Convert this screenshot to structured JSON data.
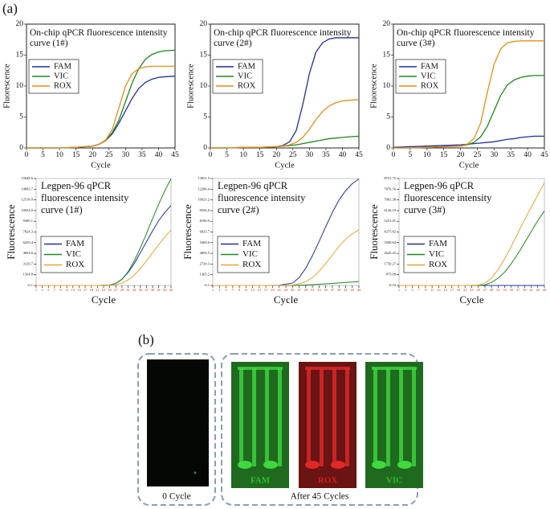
{
  "panel_labels": [
    "(a)",
    "(b)"
  ],
  "chart_data": [
    {
      "type": "line",
      "title": "On-chip qPCR fluorescence intensity curve (1#)",
      "xlabel": "Cycle",
      "ylabel": "Fluorescence",
      "x": [
        0,
        5,
        10,
        15,
        20,
        22,
        24,
        26,
        28,
        30,
        32,
        34,
        36,
        38,
        40,
        42,
        45
      ],
      "xlim": [
        0,
        45
      ],
      "xticks": [
        0,
        5,
        10,
        15,
        20,
        25,
        30,
        35,
        40,
        45
      ],
      "ylim": [
        0,
        20
      ],
      "yticks": [
        0,
        5,
        10,
        15,
        20
      ],
      "series": [
        {
          "name": "FAM",
          "color": "#1f2fa8",
          "values": [
            0,
            0,
            0,
            0.1,
            0.3,
            0.6,
            1.2,
            2.3,
            4,
            6,
            8,
            9.6,
            10.6,
            11.1,
            11.4,
            11.5,
            11.6
          ]
        },
        {
          "name": "VIC",
          "color": "#1a8a1a",
          "values": [
            0,
            0,
            0,
            0.1,
            0.3,
            0.6,
            1.2,
            2.5,
            4.5,
            7.5,
            10.5,
            12.8,
            14.3,
            15.1,
            15.5,
            15.7,
            15.8
          ]
        },
        {
          "name": "ROX",
          "color": "#f08a10",
          "values": [
            0,
            0,
            0,
            0.1,
            0.3,
            0.6,
            1.3,
            3,
            6.5,
            10,
            12,
            12.8,
            13.1,
            13.2,
            13.2,
            13.2,
            13.2
          ]
        }
      ]
    },
    {
      "type": "line",
      "title": "On-chip qPCR fluorescence intensity curve (2#)",
      "xlabel": "Cycle",
      "ylabel": "Fluorescence",
      "x": [
        0,
        5,
        10,
        15,
        20,
        22,
        24,
        26,
        28,
        30,
        32,
        34,
        36,
        38,
        40,
        42,
        45
      ],
      "xlim": [
        0,
        45
      ],
      "xticks": [
        0,
        5,
        10,
        15,
        20,
        25,
        30,
        35,
        40,
        45
      ],
      "ylim": [
        0,
        20
      ],
      "yticks": [
        0,
        5,
        10,
        15,
        20
      ],
      "series": [
        {
          "name": "FAM",
          "color": "#1f2fa8",
          "values": [
            0,
            0,
            0.1,
            0.1,
            0.2,
            0.4,
            1,
            2.8,
            7,
            12,
            15.5,
            17,
            17.6,
            17.8,
            17.8,
            17.8,
            17.8
          ]
        },
        {
          "name": "VIC",
          "color": "#1a8a1a",
          "values": [
            0,
            0,
            0.1,
            0.1,
            0.2,
            0.3,
            0.4,
            0.5,
            0.7,
            0.9,
            1.1,
            1.3,
            1.5,
            1.6,
            1.7,
            1.8,
            1.9
          ]
        },
        {
          "name": "ROX",
          "color": "#f08a10",
          "values": [
            0,
            0,
            0.1,
            0.1,
            0.2,
            0.3,
            0.5,
            0.9,
            1.7,
            3,
            4.6,
            5.9,
            6.8,
            7.3,
            7.6,
            7.7,
            7.8
          ]
        }
      ]
    },
    {
      "type": "line",
      "title": "On-chip qPCR fluorescence intensity curve (3#)",
      "xlabel": "Cycle",
      "ylabel": "Fluorescence",
      "x": [
        0,
        5,
        10,
        15,
        20,
        22,
        24,
        26,
        28,
        30,
        32,
        34,
        36,
        38,
        40,
        42,
        45
      ],
      "xlim": [
        0,
        45
      ],
      "xticks": [
        0,
        5,
        10,
        15,
        20,
        25,
        30,
        35,
        40,
        45
      ],
      "ylim": [
        0,
        20
      ],
      "yticks": [
        0,
        5,
        10,
        15,
        20
      ],
      "series": [
        {
          "name": "FAM",
          "color": "#1f2fa8",
          "values": [
            0.1,
            0.2,
            0.3,
            0.4,
            0.5,
            0.6,
            0.7,
            0.8,
            0.9,
            1,
            1.2,
            1.4,
            1.5,
            1.7,
            1.8,
            1.9,
            1.9
          ]
        },
        {
          "name": "VIC",
          "color": "#1a8a1a",
          "values": [
            0,
            0,
            0.1,
            0.2,
            0.3,
            0.5,
            0.9,
            1.8,
            3.5,
            6,
            8.5,
            10.2,
            11,
            11.4,
            11.6,
            11.7,
            11.7
          ]
        },
        {
          "name": "ROX",
          "color": "#f08a10",
          "values": [
            0,
            0,
            0.1,
            0.2,
            0.3,
            0.6,
            1.5,
            4,
            9,
            13.5,
            16,
            17,
            17.2,
            17.3,
            17.3,
            17.3,
            17.3
          ]
        }
      ]
    },
    {
      "type": "line",
      "title": "Legpen-96 qPCR fluorescence intensity curve (1#)",
      "xlabel": "Cycle",
      "ylabel": "Fluorescence",
      "x": [
        1,
        5,
        9,
        13,
        17,
        21,
        25,
        27,
        29,
        31,
        33,
        35,
        37,
        39,
        41,
        43,
        45
      ],
      "xlim": [
        1,
        45
      ],
      "xticks": [
        1,
        3,
        5,
        7,
        9,
        11,
        13,
        15,
        17,
        19,
        21,
        23,
        25,
        27,
        29,
        31,
        33,
        35,
        37,
        39,
        41,
        43,
        45
      ],
      "ylim": [
        -0.1,
        15648.6
      ],
      "yticks": [
        -0.1,
        1564.8,
        3129.7,
        4694.6,
        6259.4,
        7824.3,
        9389.1,
        {
          "value": 10954,
          "label": "10954.0"
        },
        12518.9,
        14083.7,
        15648.6
      ],
      "series": [
        {
          "name": "FAM",
          "color": "#1f2fa8",
          "values": [
            0,
            0,
            0,
            0,
            0,
            0,
            50,
            300,
            900,
            1900,
            3200,
            4800,
            6400,
            8000,
            9500,
            10700,
            11700
          ]
        },
        {
          "name": "VIC",
          "color": "#1a8a1a",
          "values": [
            0,
            0,
            0,
            0,
            0,
            0,
            50,
            300,
            900,
            2000,
            3600,
            5500,
            7600,
            9800,
            11900,
            13900,
            15600
          ]
        },
        {
          "name": "ROX",
          "color": "#f0a030",
          "values": [
            0,
            0,
            0,
            0,
            0,
            0,
            20,
            100,
            350,
            800,
            1500,
            2500,
            3600,
            4800,
            6000,
            7100,
            8100
          ]
        }
      ]
    },
    {
      "type": "line",
      "title": "Legpen-96 qPCR fluorescence intensity curve (2#)",
      "xlabel": "Cycle",
      "ylabel": "Fluorescence",
      "x": [
        1,
        5,
        9,
        13,
        17,
        21,
        25,
        27,
        29,
        31,
        33,
        35,
        37,
        39,
        41,
        43,
        45
      ],
      "xlim": [
        1,
        45
      ],
      "xticks": [
        1,
        3,
        5,
        7,
        9,
        11,
        13,
        15,
        17,
        19,
        21,
        23,
        25,
        27,
        29,
        31,
        33,
        35,
        37,
        39,
        41,
        43,
        45
      ],
      "ylim": [
        -0.1,
        13651.5
      ],
      "yticks": [
        -0.1,
        1365.2,
        2730.3,
        4095.5,
        5460.6,
        6825.7,
        8190.9,
        {
          "value": 9556,
          "label": "9556.0"
        },
        10921.2,
        12286.4,
        13651.5
      ],
      "series": [
        {
          "name": "FAM",
          "color": "#1f2fa8",
          "values": [
            0,
            0,
            0,
            0,
            0,
            30,
            300,
            1000,
            2200,
            3800,
            5600,
            7500,
            9300,
            10900,
            12100,
            13000,
            13600
          ]
        },
        {
          "name": "VIC",
          "color": "#1a8a1a",
          "values": [
            0,
            0,
            0,
            0,
            0,
            0,
            10,
            30,
            60,
            100,
            150,
            200,
            260,
            320,
            380,
            440,
            500
          ]
        },
        {
          "name": "ROX",
          "color": "#f0a030",
          "values": [
            0,
            0,
            0,
            0,
            0,
            0,
            50,
            200,
            500,
            1000,
            1800,
            2800,
            3900,
            5000,
            5900,
            6600,
            7100
          ]
        }
      ]
    },
    {
      "type": "line",
      "title": "Legpen-96 qPCR fluorescence intensity curve (3#)",
      "xlabel": "Cycle",
      "ylabel": "Fluorescence",
      "x": [
        1,
        5,
        9,
        13,
        17,
        21,
        25,
        27,
        29,
        31,
        33,
        35,
        37,
        39,
        41,
        43,
        45
      ],
      "xlim": [
        1,
        45
      ],
      "xticks": [
        1,
        3,
        5,
        7,
        9,
        11,
        13,
        15,
        17,
        19,
        21,
        23,
        25,
        27,
        29,
        31,
        33,
        35,
        37,
        39,
        41,
        43,
        45
      ],
      "ylim": [
        -0.1,
        8751.75
      ],
      "yticks": [
        {
          "value": -0.1,
          "label": "-0.10"
        },
        875.09,
        1750.27,
        2625.45,
        3500.64,
        4375.82,
        5251.01,
        6126.19,
        7001.38,
        7876.56,
        8751.75
      ],
      "series": [
        {
          "name": "FAM",
          "color": "#1f2fa8",
          "values": [
            0,
            0,
            0,
            0,
            0,
            0,
            0,
            0,
            0,
            0,
            0,
            0,
            0,
            0,
            0,
            0,
            0
          ]
        },
        {
          "name": "VIC",
          "color": "#1a8a1a",
          "values": [
            0,
            0,
            0,
            0,
            0,
            0,
            0,
            50,
            250,
            600,
            1100,
            1800,
            2600,
            3500,
            4400,
            5300,
            6100
          ]
        },
        {
          "name": "ROX",
          "color": "#f0a030",
          "values": [
            0,
            0,
            0,
            0,
            0,
            0,
            30,
            200,
            600,
            1300,
            2200,
            3200,
            4300,
            5400,
            6400,
            7400,
            8400
          ]
        }
      ]
    }
  ],
  "images": {
    "channels": [
      "FAM",
      "ROX",
      "VIC"
    ],
    "captions": [
      "0 Cycle",
      "After 45 Cycles"
    ]
  }
}
